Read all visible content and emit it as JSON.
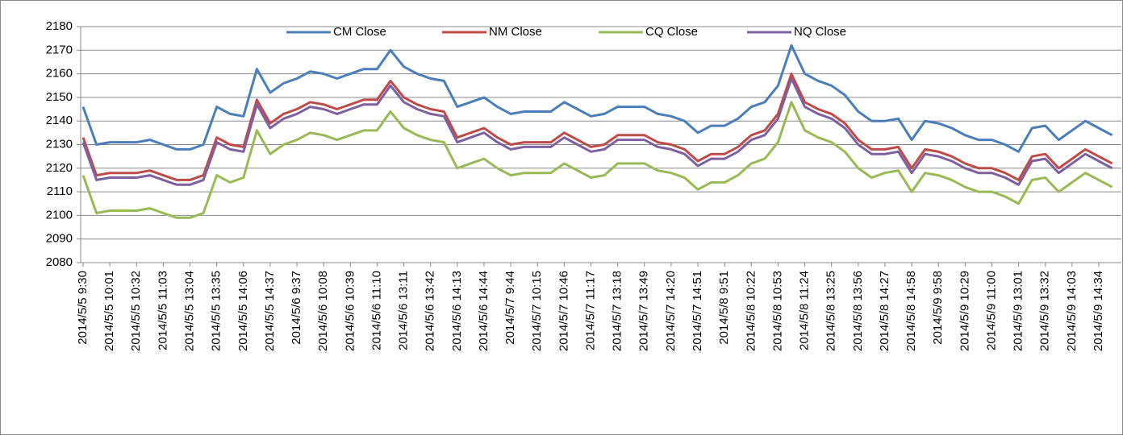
{
  "chart_data": {
    "type": "line",
    "categories": [
      "2014/5/5 9:30",
      null,
      "2014/5/5 10:01",
      null,
      "2014/5/5 10:32",
      null,
      "2014/5/5 11:03",
      null,
      "2014/5/5 13:04",
      null,
      "2014/5/5 13:35",
      null,
      "2014/5/5 14:06",
      null,
      "2014/5/5 14:37",
      null,
      "2014/5/6 9:37",
      null,
      "2014/5/6 10:08",
      null,
      "2014/5/6 10:39",
      null,
      "2014/5/6 11:10",
      null,
      "2014/5/6 13:11",
      null,
      "2014/5/6 13:42",
      null,
      "2014/5/6 14:13",
      null,
      "2014/5/6 14:44",
      null,
      "2014/5/7 9:44",
      null,
      "2014/5/7 10:15",
      null,
      "2014/5/7 10:46",
      null,
      "2014/5/7 11:17",
      null,
      "2014/5/7 13:18",
      null,
      "2014/5/7 13:49",
      null,
      "2014/5/7 14:20",
      null,
      "2014/5/7 14:51",
      null,
      "2014/5/8 9:51",
      null,
      "2014/5/8 10:22",
      null,
      "2014/5/8 10:53",
      null,
      "2014/5/8 11:24",
      null,
      "2014/5/8 13:25",
      null,
      "2014/5/8 13:56",
      null,
      "2014/5/8 14:27",
      null,
      "2014/5/8 14:58",
      null,
      "2014/5/9 9:58",
      null,
      "2014/5/9 10:29",
      null,
      "2014/5/9 11:00",
      null,
      "2014/5/9 13:01",
      null,
      "2014/5/9 13:32",
      null,
      "2014/5/9 14:03",
      null,
      "2014/5/9 14:34",
      null
    ],
    "series": [
      {
        "name": "CM Close",
        "color": "#4a7ebb",
        "values": [
          2146,
          2130,
          2131,
          2131,
          2131,
          2132,
          2130,
          2128,
          2128,
          2130,
          2146,
          2143,
          2142,
          2162,
          2152,
          2156,
          2158,
          2161,
          2160,
          2158,
          2160,
          2162,
          2162,
          2170,
          2163,
          2160,
          2158,
          2157,
          2146,
          2148,
          2150,
          2146,
          2143,
          2144,
          2144,
          2144,
          2148,
          2145,
          2142,
          2143,
          2146,
          2146,
          2146,
          2143,
          2142,
          2140,
          2135,
          2138,
          2138,
          2141,
          2146,
          2148,
          2155,
          2172,
          2160,
          2157,
          2155,
          2151,
          2144,
          2140,
          2140,
          2141,
          2132,
          2140,
          2139,
          2137,
          2134,
          2132,
          2132,
          2130,
          2127,
          2137,
          2138,
          2132,
          2136,
          2140,
          2137,
          2134
        ]
      },
      {
        "name": "NM Close",
        "color": "#be4b48",
        "values": [
          2133,
          2117,
          2118,
          2118,
          2118,
          2119,
          2117,
          2115,
          2115,
          2117,
          2133,
          2130,
          2129,
          2149,
          2139,
          2143,
          2145,
          2148,
          2147,
          2145,
          2147,
          2149,
          2149,
          2157,
          2150,
          2147,
          2145,
          2144,
          2133,
          2135,
          2137,
          2133,
          2130,
          2131,
          2131,
          2131,
          2135,
          2132,
          2129,
          2130,
          2134,
          2134,
          2134,
          2131,
          2130,
          2128,
          2123,
          2126,
          2126,
          2129,
          2134,
          2136,
          2143,
          2160,
          2148,
          2145,
          2143,
          2139,
          2132,
          2128,
          2128,
          2129,
          2120,
          2128,
          2127,
          2125,
          2122,
          2120,
          2120,
          2118,
          2115,
          2125,
          2126,
          2120,
          2124,
          2128,
          2125,
          2122
        ]
      },
      {
        "name": "CQ Close",
        "color": "#98b954",
        "values": [
          2117,
          2101,
          2102,
          2102,
          2102,
          2103,
          2101,
          2099,
          2099,
          2101,
          2117,
          2114,
          2116,
          2136,
          2126,
          2130,
          2132,
          2135,
          2134,
          2132,
          2134,
          2136,
          2136,
          2144,
          2137,
          2134,
          2132,
          2131,
          2120,
          2122,
          2124,
          2120,
          2117,
          2118,
          2118,
          2118,
          2122,
          2119,
          2116,
          2117,
          2122,
          2122,
          2122,
          2119,
          2118,
          2116,
          2111,
          2114,
          2114,
          2117,
          2122,
          2124,
          2131,
          2148,
          2136,
          2133,
          2131,
          2127,
          2120,
          2116,
          2118,
          2119,
          2110,
          2118,
          2117,
          2115,
          2112,
          2110,
          2110,
          2108,
          2105,
          2115,
          2116,
          2110,
          2114,
          2118,
          2115,
          2112
        ]
      },
      {
        "name": "NQ Close",
        "color": "#7d60a0",
        "values": [
          2131,
          2115,
          2116,
          2116,
          2116,
          2117,
          2115,
          2113,
          2113,
          2115,
          2131,
          2128,
          2127,
          2147,
          2137,
          2141,
          2143,
          2146,
          2145,
          2143,
          2145,
          2147,
          2147,
          2155,
          2148,
          2145,
          2143,
          2142,
          2131,
          2133,
          2135,
          2131,
          2128,
          2129,
          2129,
          2129,
          2133,
          2130,
          2127,
          2128,
          2132,
          2132,
          2132,
          2129,
          2128,
          2126,
          2121,
          2124,
          2124,
          2127,
          2132,
          2134,
          2141,
          2158,
          2146,
          2143,
          2141,
          2137,
          2130,
          2126,
          2126,
          2127,
          2118,
          2126,
          2125,
          2123,
          2120,
          2118,
          2118,
          2116,
          2113,
          2123,
          2124,
          2118,
          2122,
          2126,
          2123,
          2120
        ]
      }
    ],
    "ylim": [
      2080,
      2180
    ],
    "yticks": [
      2080,
      2090,
      2100,
      2110,
      2120,
      2130,
      2140,
      2150,
      2160,
      2170,
      2180
    ],
    "grid": true,
    "legend": "top"
  }
}
